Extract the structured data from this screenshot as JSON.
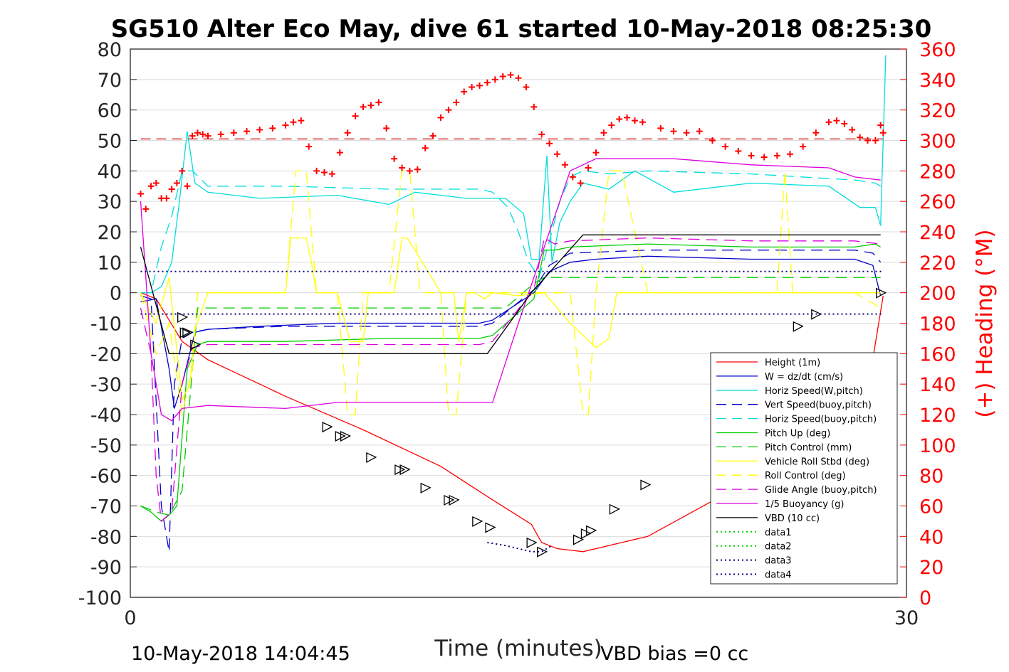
{
  "chart_data": {
    "type": "line",
    "title": "SG510 Alter Eco May, dive 61 started 10-May-2018 08:25:30",
    "xlabel": "Time (minutes)",
    "ylabel_right": "(+) Heading (°M)",
    "footer_left": "10-May-2018 14:04:45",
    "footer_right": "VBD bias =0 cc",
    "xlim": [
      0,
      30
    ],
    "ylim": [
      -100,
      80
    ],
    "ylim_right": [
      0,
      360
    ],
    "xticks": [
      "0",
      "30"
    ],
    "yticks": [
      "80",
      "70",
      "60",
      "50",
      "40",
      "30",
      "20",
      "10",
      "0",
      "-10",
      "-20",
      "-30",
      "-40",
      "-50",
      "-60",
      "-70",
      "-80",
      "-90",
      "-100"
    ],
    "yticks_right": [
      "360",
      "340",
      "320",
      "300",
      "280",
      "260",
      "240",
      "220",
      "200",
      "180",
      "160",
      "140",
      "120",
      "100",
      "80",
      "60",
      "40",
      "20",
      "0"
    ],
    "grid": true,
    "legend_position": "bottom-right",
    "colors": {
      "red": "#ff0000",
      "blue": "#0000cc",
      "cyan": "#00e0e0",
      "green": "#00cc00",
      "yellow": "#ffff00",
      "magenta": "#dd00dd",
      "black": "#000000",
      "navy": "#000080"
    },
    "series": [
      {
        "name": "Height (1m)",
        "color": "#ff0000",
        "style": "solid",
        "x": [
          0.4,
          1.0,
          1.5,
          2.0,
          3.0,
          6.0,
          9.0,
          12.0,
          14.0,
          15.5,
          15.9,
          16.5,
          17.5,
          20.0,
          23.0,
          26.0,
          28.6,
          29.1
        ],
        "y": [
          0,
          -2,
          -9,
          -16,
          -22,
          -34,
          -45,
          -57,
          -68,
          -76,
          -82,
          -84,
          -85,
          -80,
          -66,
          -45,
          -27,
          -1
        ]
      },
      {
        "name": "W = dz/dt (cm/s)",
        "color": "#0000cc",
        "style": "solid",
        "x": [
          0.4,
          1.0,
          1.5,
          1.7,
          2.0,
          2.5,
          3.0,
          5.0,
          8.0,
          11.0,
          13.5,
          14.0,
          15.6,
          16.2,
          17.0,
          18.0,
          20.0,
          24.0,
          28.0,
          28.7,
          29.0
        ],
        "y": [
          -3,
          -2,
          -25,
          -38,
          -30,
          -13,
          -12,
          -11,
          -10,
          -10,
          -10,
          -9,
          0,
          7,
          10,
          11,
          12,
          11,
          11,
          9,
          -1
        ]
      },
      {
        "name": "Horiz Speed(W,pitch)",
        "color": "#00dddd",
        "style": "solid",
        "x": [
          0.4,
          0.8,
          1.2,
          1.6,
          1.9,
          2.2,
          2.5,
          3.0,
          5.0,
          8.0,
          10.0,
          11.0,
          13.0,
          14.5,
          15.2,
          15.5,
          15.8,
          16.1,
          16.3,
          16.6,
          17.0,
          17.5,
          18.5,
          19.5,
          21.0,
          24.0,
          27.0,
          28.2,
          28.8,
          29.0,
          29.2
        ],
        "y": [
          0,
          0,
          2,
          10,
          30,
          53,
          36,
          33,
          31,
          32,
          29,
          33,
          31,
          31,
          26,
          11,
          11,
          45,
          10,
          23,
          30,
          36,
          34,
          40,
          33,
          36,
          35,
          28,
          28,
          22,
          78
        ]
      },
      {
        "name": "Vert Speed(buoy,pitch)",
        "color": "#0000cc",
        "style": "dashed",
        "x": [
          0.4,
          0.8,
          1.2,
          1.5,
          1.7,
          2.0,
          2.4,
          3.0,
          6.0,
          10.0,
          13.5,
          14.0,
          15.6,
          16.2,
          17.0,
          20.0,
          24.0,
          28.0,
          28.7,
          29.0
        ],
        "y": [
          -1,
          -2,
          -70,
          -85,
          -30,
          -15,
          -13,
          -12,
          -11,
          -11,
          -11,
          -10,
          1,
          9,
          13,
          14,
          14,
          14,
          13,
          10
        ]
      },
      {
        "name": "Horiz Speed(buoy,pitch)",
        "color": "#00dddd",
        "style": "dashed",
        "x": [
          0.4,
          0.8,
          1.2,
          1.6,
          2.0,
          2.4,
          3.0,
          6.0,
          10.0,
          13.5,
          14.0,
          14.6,
          15.0,
          15.4,
          15.8,
          16.2,
          16.6,
          17.0,
          17.5,
          18.5,
          20.0,
          24.0,
          28.0,
          28.8,
          29.0
        ],
        "y": [
          0,
          0,
          15,
          25,
          40,
          40,
          35,
          35,
          34,
          34,
          33,
          28,
          20,
          10,
          5,
          17,
          30,
          38,
          40,
          39,
          40,
          39,
          37,
          36,
          35
        ]
      },
      {
        "name": "Pitch Up (deg)",
        "color": "#00cc00",
        "style": "solid",
        "x": [
          0.4,
          0.8,
          1.2,
          1.5,
          1.8,
          2.2,
          2.6,
          3.0,
          6.0,
          10.0,
          13.5,
          14.0,
          15.6,
          16.0,
          16.4,
          17.0,
          20.0,
          24.0,
          28.0,
          28.8,
          29.0
        ],
        "y": [
          -70,
          -72,
          -75,
          -73,
          -70,
          -25,
          -17,
          -16,
          -16,
          -15,
          -15,
          -14,
          -2,
          14,
          14,
          15,
          16,
          15,
          15,
          16,
          15
        ]
      },
      {
        "name": "Pitch Control (mm)",
        "color": "#00cc00",
        "style": "dashed",
        "x": [
          0.4,
          1.0,
          1.5,
          2.0,
          2.6,
          3.0,
          6.0,
          10.0,
          13.5,
          14.5,
          15.6,
          16.0,
          17.0,
          20.0,
          24.0,
          28.0,
          29.0
        ],
        "y": [
          -70,
          -72,
          -73,
          -65,
          -5,
          -5,
          -5,
          -5,
          -5,
          -5,
          3,
          5,
          5,
          5,
          5,
          5,
          5
        ]
      },
      {
        "name": "Vehicle Roll Stbd (deg)",
        "color": "#ffff00",
        "style": "solid",
        "x": [
          0.4,
          1.0,
          1.5,
          2.0,
          2.3,
          2.5,
          3.0,
          6.0,
          6.2,
          6.4,
          6.8,
          7.0,
          7.2,
          8.0,
          8.5,
          9.0,
          9.2,
          10.2,
          10.5,
          10.7,
          11.0,
          12.0,
          12.5,
          12.7,
          13.0,
          13.3,
          13.7,
          14.0,
          15.0,
          16.0,
          17.0,
          18.0,
          18.5,
          18.8,
          19.0,
          19.5,
          20.0,
          25.0,
          25.5,
          27.0,
          28.0,
          29.0
        ],
        "y": [
          0,
          -10,
          5,
          -35,
          -30,
          -12,
          0,
          0,
          18,
          18,
          18,
          10,
          0,
          0,
          -16,
          -16,
          0,
          0,
          18,
          18,
          14,
          0,
          0,
          -16,
          0,
          0,
          -2,
          0,
          -1,
          0,
          -10,
          -18,
          -15,
          0,
          0,
          0,
          0,
          0,
          0,
          0,
          0,
          0
        ]
      },
      {
        "name": "Roll Control (deg)",
        "color": "#ffff00",
        "style": "dashed",
        "x": [
          0.4,
          1.0,
          1.5,
          2.0,
          2.4,
          2.6,
          3.0,
          6.0,
          6.4,
          6.8,
          7.2,
          8.0,
          8.4,
          8.7,
          9.0,
          10.0,
          10.5,
          10.8,
          11.2,
          12.0,
          12.3,
          12.6,
          13.0,
          13.5,
          14.0,
          15.0,
          16.5,
          17.0,
          17.5,
          17.7,
          18.0,
          18.5,
          19.0,
          20.0,
          25.0,
          25.3,
          25.6,
          28.0,
          29.0
        ],
        "y": [
          0,
          -20,
          -10,
          -40,
          -25,
          0,
          0,
          0,
          40,
          40,
          0,
          0,
          -40,
          -40,
          0,
          0,
          40,
          40,
          0,
          0,
          -40,
          -40,
          0,
          0,
          0,
          0,
          0,
          0,
          -40,
          -40,
          0,
          40,
          40,
          0,
          0,
          40,
          0,
          0,
          -5
        ]
      },
      {
        "name": "Glide Angle (buoy,pitch)",
        "color": "#dd00dd",
        "style": "dashed",
        "x": [
          0.4,
          0.8,
          1.0,
          1.2,
          1.6,
          2.0,
          2.4,
          3.0,
          6.0,
          10.0,
          13.5,
          14.0,
          15.6,
          16.0,
          16.4,
          17.0,
          20.0,
          24.0,
          28.0,
          29.0
        ],
        "y": [
          -5,
          -20,
          -60,
          -75,
          -72,
          -30,
          -18,
          -17,
          -17,
          -17,
          -17,
          -16,
          1,
          18,
          16,
          17,
          18,
          17,
          17,
          16
        ]
      },
      {
        "name": "1/5 Buoyancy (g)",
        "color": "#dd00dd",
        "style": "solid",
        "x": [
          0.4,
          0.8,
          1.2,
          1.6,
          2.0,
          3.0,
          6.0,
          8.0,
          10.0,
          13.5,
          14.0,
          15.0,
          16.0,
          17.0,
          18.0,
          21.0,
          24.0,
          27.0,
          28.0,
          29.0
        ],
        "y": [
          30,
          -20,
          -40,
          -42,
          -38,
          -37,
          -38,
          -36,
          -36,
          -36,
          -36,
          -10,
          15,
          40,
          44,
          44,
          42,
          41,
          38,
          37
        ]
      },
      {
        "name": "VBD (10 cc)",
        "color": "#000000",
        "style": "solid",
        "x": [
          0.4,
          1.5,
          2.5,
          6.0,
          10.0,
          13.8,
          15.5,
          17.5,
          24.0,
          29.0
        ],
        "y": [
          15,
          -20,
          -20,
          -20,
          -20,
          -20,
          0,
          19,
          19,
          19
        ]
      },
      {
        "name": "data1",
        "color": "#00cc00",
        "style": "dotted",
        "x": [],
        "y": []
      },
      {
        "name": "data2",
        "color": "#00cc00",
        "style": "dotted",
        "x": [],
        "y": []
      },
      {
        "name": "data3",
        "color": "#000080",
        "style": "dotted",
        "x": [
          13.8,
          14.5,
          15.0,
          15.5,
          15.9,
          16.3
        ],
        "y": [
          -82,
          -83,
          -84,
          -85,
          -85,
          -83
        ]
      },
      {
        "name": "data4",
        "color": "#000080",
        "style": "dotted",
        "x": [
          0.4,
          29.1
        ],
        "y": [
          7,
          7
        ]
      }
    ],
    "extra_lines": [
      {
        "color": "#000080",
        "style": "dotted",
        "x": [
          0.4,
          29.1
        ],
        "y": [
          -7,
          -7
        ]
      }
    ],
    "heading": {
      "color": "#ff0000",
      "axis": "right",
      "marker": "+",
      "x": [
        0.4,
        0.6,
        0.8,
        1.0,
        1.2,
        1.4,
        1.6,
        1.8,
        2.0,
        2.2,
        2.4,
        2.6,
        2.8,
        3.0,
        3.5,
        4.0,
        4.5,
        5.0,
        5.5,
        6.0,
        6.3,
        6.6,
        6.9,
        7.2,
        7.5,
        7.8,
        8.1,
        8.4,
        8.7,
        9.0,
        9.3,
        9.6,
        9.9,
        10.2,
        10.5,
        10.8,
        11.1,
        11.4,
        11.7,
        12.0,
        12.3,
        12.6,
        12.9,
        13.2,
        13.5,
        13.8,
        14.1,
        14.4,
        14.7,
        15.0,
        15.3,
        15.6,
        15.9,
        16.2,
        16.5,
        16.8,
        17.1,
        17.4,
        17.7,
        18.0,
        18.3,
        18.6,
        18.9,
        19.2,
        19.5,
        19.8,
        20.5,
        21.0,
        21.5,
        22.0,
        22.5,
        23.0,
        23.5,
        24.0,
        24.5,
        25.0,
        25.5,
        26.0,
        26.5,
        27.0,
        27.3,
        27.6,
        27.9,
        28.2,
        28.5,
        28.8,
        29.0,
        29.1
      ],
      "y": [
        265,
        255,
        270,
        272,
        262,
        262,
        268,
        272,
        280,
        270,
        303,
        305,
        304,
        303,
        304,
        305,
        306,
        307,
        308,
        310,
        312,
        313,
        296,
        280,
        279,
        278,
        292,
        305,
        316,
        322,
        323,
        325,
        308,
        288,
        282,
        280,
        281,
        295,
        303,
        315,
        320,
        325,
        332,
        335,
        336,
        338,
        340,
        342,
        343,
        341,
        335,
        322,
        304,
        298,
        291,
        284,
        276,
        272,
        282,
        292,
        305,
        310,
        314,
        315,
        313,
        312,
        308,
        306,
        305,
        306,
        300,
        296,
        293,
        290,
        289,
        290,
        291,
        296,
        305,
        312,
        313,
        311,
        307,
        302,
        300,
        300,
        310,
        305
      ]
    },
    "heading_reference": {
      "color": "#cc0000",
      "style": "dashed",
      "value": 301
    },
    "markers": {
      "color": "#000000",
      "symbol": "triangle",
      "x": [
        2.0,
        2.1,
        2.2,
        2.5,
        7.6,
        8.1,
        8.3,
        9.3,
        10.4,
        10.6,
        11.4,
        12.3,
        12.5,
        13.4,
        13.9,
        15.5,
        15.9,
        17.3,
        17.6,
        17.8,
        18.7,
        19.9,
        25.8,
        26.5,
        29.0
      ],
      "y": [
        -8,
        -13,
        -13,
        -17,
        -44,
        -47,
        -47,
        -54,
        -58,
        -58,
        -64,
        -68,
        -68,
        -75,
        -77,
        -82,
        -85,
        -81,
        -79,
        -78,
        -71,
        -63,
        -11,
        -7,
        0
      ]
    }
  }
}
